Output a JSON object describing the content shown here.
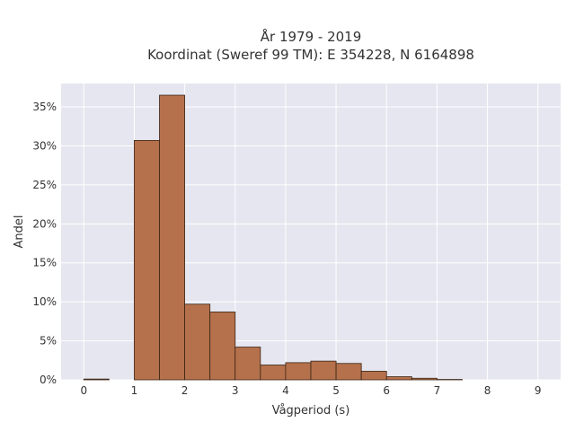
{
  "chart_data": {
    "type": "bar",
    "title": "År 1979 - 2019",
    "subtitle": "Koordinat (Sweref 99 TM): E 354228, N 6164898",
    "xlabel": "Vågperiod (s)",
    "ylabel": "Andel",
    "bin_width": 0.5,
    "bins": [
      {
        "start": 0.0,
        "value": 0.1
      },
      {
        "start": 0.5,
        "value": 0.0
      },
      {
        "start": 1.0,
        "value": 30.7
      },
      {
        "start": 1.5,
        "value": 36.5
      },
      {
        "start": 2.0,
        "value": 9.7
      },
      {
        "start": 2.5,
        "value": 8.7
      },
      {
        "start": 3.0,
        "value": 4.2
      },
      {
        "start": 3.5,
        "value": 1.9
      },
      {
        "start": 4.0,
        "value": 2.2
      },
      {
        "start": 4.5,
        "value": 2.4
      },
      {
        "start": 5.0,
        "value": 2.1
      },
      {
        "start": 5.5,
        "value": 1.1
      },
      {
        "start": 6.0,
        "value": 0.4
      },
      {
        "start": 6.5,
        "value": 0.2
      },
      {
        "start": 7.0,
        "value": 0.05
      }
    ],
    "xlim": [
      -0.45,
      9.45
    ],
    "ylim": [
      0,
      38
    ],
    "xticks": [
      0,
      1,
      2,
      3,
      4,
      5,
      6,
      7,
      8,
      9
    ],
    "xtick_labels": [
      "0",
      "1",
      "2",
      "3",
      "4",
      "5",
      "6",
      "7",
      "8",
      "9"
    ],
    "yticks": [
      0,
      5,
      10,
      15,
      20,
      25,
      30,
      35
    ],
    "ytick_labels": [
      "0%",
      "5%",
      "10%",
      "15%",
      "20%",
      "25%",
      "30%",
      "35%"
    ],
    "grid": true,
    "legend": "none",
    "colors": {
      "bar_fill": "#b5714b",
      "bar_stroke": "#3a2416",
      "plot_bg": "#e5e6ef",
      "grid": "#ffffff"
    }
  }
}
